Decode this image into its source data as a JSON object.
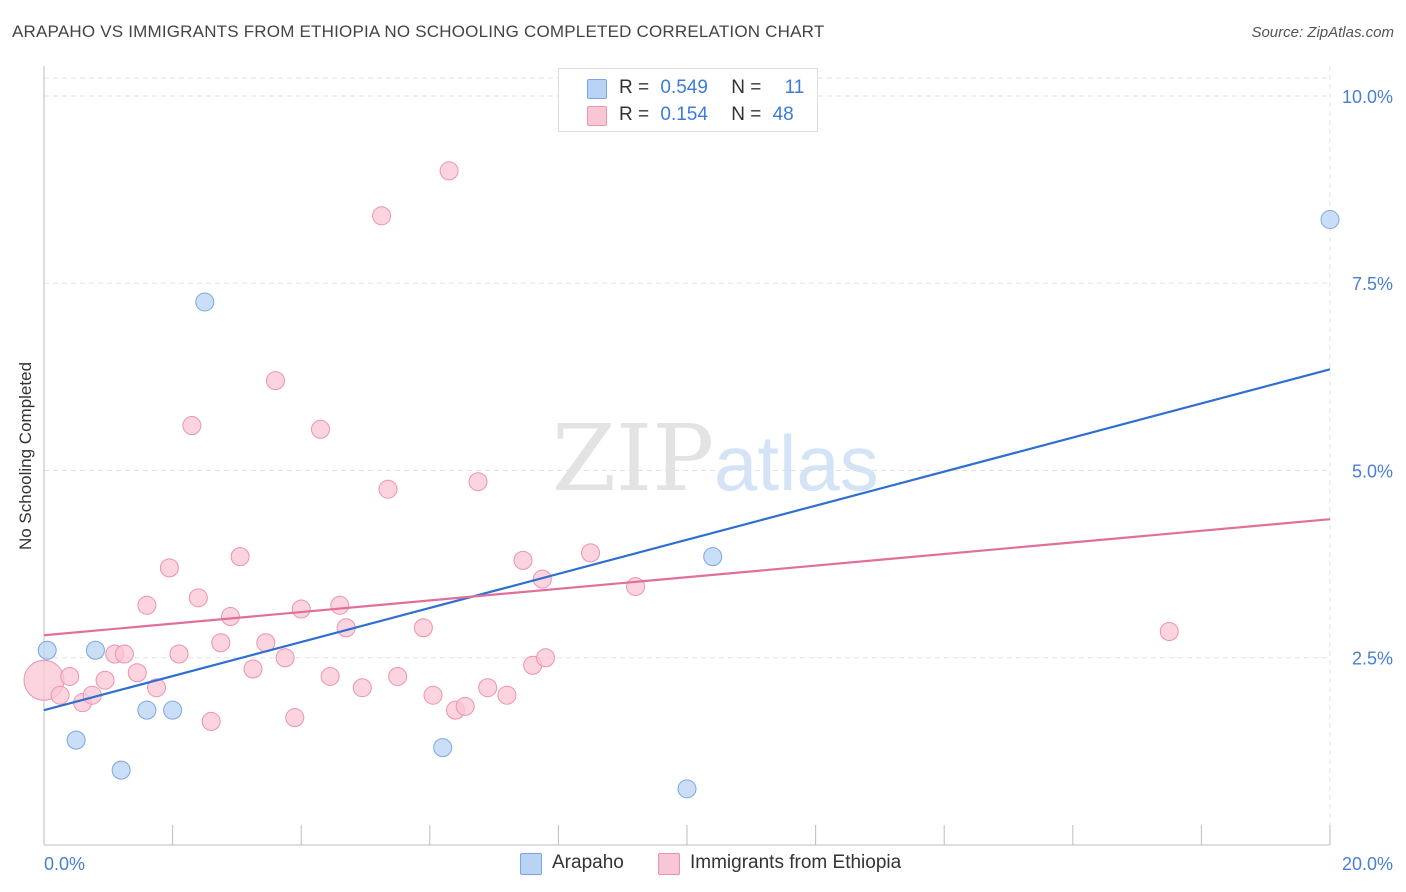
{
  "header": {
    "title": "ARAPAHO VS IMMIGRANTS FROM ETHIOPIA NO SCHOOLING COMPLETED CORRELATION CHART",
    "source": "Source: ZipAtlas.com"
  },
  "legend": {
    "rows": [
      {
        "r_label": "R =",
        "r_value": "0.549",
        "n_label": "N =",
        "n_value": "11"
      },
      {
        "r_label": "R =",
        "r_value": "0.154",
        "n_label": "N =",
        "n_value": "48"
      }
    ]
  },
  "watermark": {
    "zip": "ZIP",
    "atlas": "atlas"
  },
  "colors": {
    "arapaho_fill": "#b9d3f5",
    "arapaho_stroke": "#7aa7e0",
    "arapaho_line": "#2f6fd0",
    "ethiopia_fill": "#f9c6d5",
    "ethiopia_stroke": "#ec93ae",
    "ethiopia_line": "#e0709a",
    "tick_label": "#4a7fd0"
  },
  "chart_data": {
    "type": "scatter",
    "xlabel": "",
    "ylabel": "No Schooling Completed",
    "xlim": [
      0,
      20
    ],
    "ylim": [
      0,
      10.4
    ],
    "x_tick_labels": [
      "0.0%",
      "20.0%"
    ],
    "y_ticks": [
      2.5,
      5.0,
      7.5,
      10.0
    ],
    "y_tick_labels": [
      "2.5%",
      "5.0%",
      "7.5%",
      "10.0%"
    ],
    "grid": true,
    "series": [
      {
        "name": "Arapaho",
        "points": [
          [
            0.05,
            2.6
          ],
          [
            0.8,
            2.6
          ],
          [
            0.5,
            1.4
          ],
          [
            1.2,
            1.0
          ],
          [
            1.6,
            1.8
          ],
          [
            2.0,
            1.8
          ],
          [
            2.5,
            7.25
          ],
          [
            6.2,
            1.3
          ],
          [
            10.4,
            3.85
          ],
          [
            10.0,
            0.75
          ],
          [
            20.0,
            8.35
          ]
        ],
        "trend": {
          "x0": 0,
          "y0": 1.8,
          "x1": 20,
          "y1": 6.35
        }
      },
      {
        "name": "Immigrants from Ethiopia",
        "points": [
          [
            0.0,
            2.2
          ],
          [
            0.25,
            2.0
          ],
          [
            0.4,
            2.25
          ],
          [
            0.6,
            1.9
          ],
          [
            0.75,
            2.0
          ],
          [
            0.95,
            2.2
          ],
          [
            1.1,
            2.55
          ],
          [
            1.25,
            2.55
          ],
          [
            1.45,
            2.3
          ],
          [
            1.6,
            3.2
          ],
          [
            1.75,
            2.1
          ],
          [
            1.95,
            3.7
          ],
          [
            2.1,
            2.55
          ],
          [
            2.3,
            5.6
          ],
          [
            2.4,
            3.3
          ],
          [
            2.6,
            1.65
          ],
          [
            2.75,
            2.7
          ],
          [
            2.9,
            3.05
          ],
          [
            3.05,
            3.85
          ],
          [
            3.25,
            2.35
          ],
          [
            3.45,
            2.7
          ],
          [
            3.6,
            6.2
          ],
          [
            3.75,
            2.5
          ],
          [
            3.9,
            1.7
          ],
          [
            4.0,
            3.15
          ],
          [
            4.3,
            5.55
          ],
          [
            4.45,
            2.25
          ],
          [
            4.6,
            3.2
          ],
          [
            4.7,
            2.9
          ],
          [
            4.95,
            2.1
          ],
          [
            5.25,
            8.4
          ],
          [
            5.35,
            4.75
          ],
          [
            5.5,
            2.25
          ],
          [
            5.9,
            2.9
          ],
          [
            6.05,
            2.0
          ],
          [
            6.3,
            9.0
          ],
          [
            6.4,
            1.8
          ],
          [
            6.55,
            1.85
          ],
          [
            6.75,
            4.85
          ],
          [
            6.9,
            2.1
          ],
          [
            7.2,
            2.0
          ],
          [
            7.45,
            3.8
          ],
          [
            7.6,
            2.4
          ],
          [
            7.75,
            3.55
          ],
          [
            7.8,
            2.5
          ],
          [
            8.5,
            3.9
          ],
          [
            9.2,
            3.45
          ],
          [
            17.5,
            2.85
          ]
        ],
        "trend": {
          "x0": 0,
          "y0": 2.8,
          "x1": 20,
          "y1": 4.35
        }
      }
    ]
  }
}
